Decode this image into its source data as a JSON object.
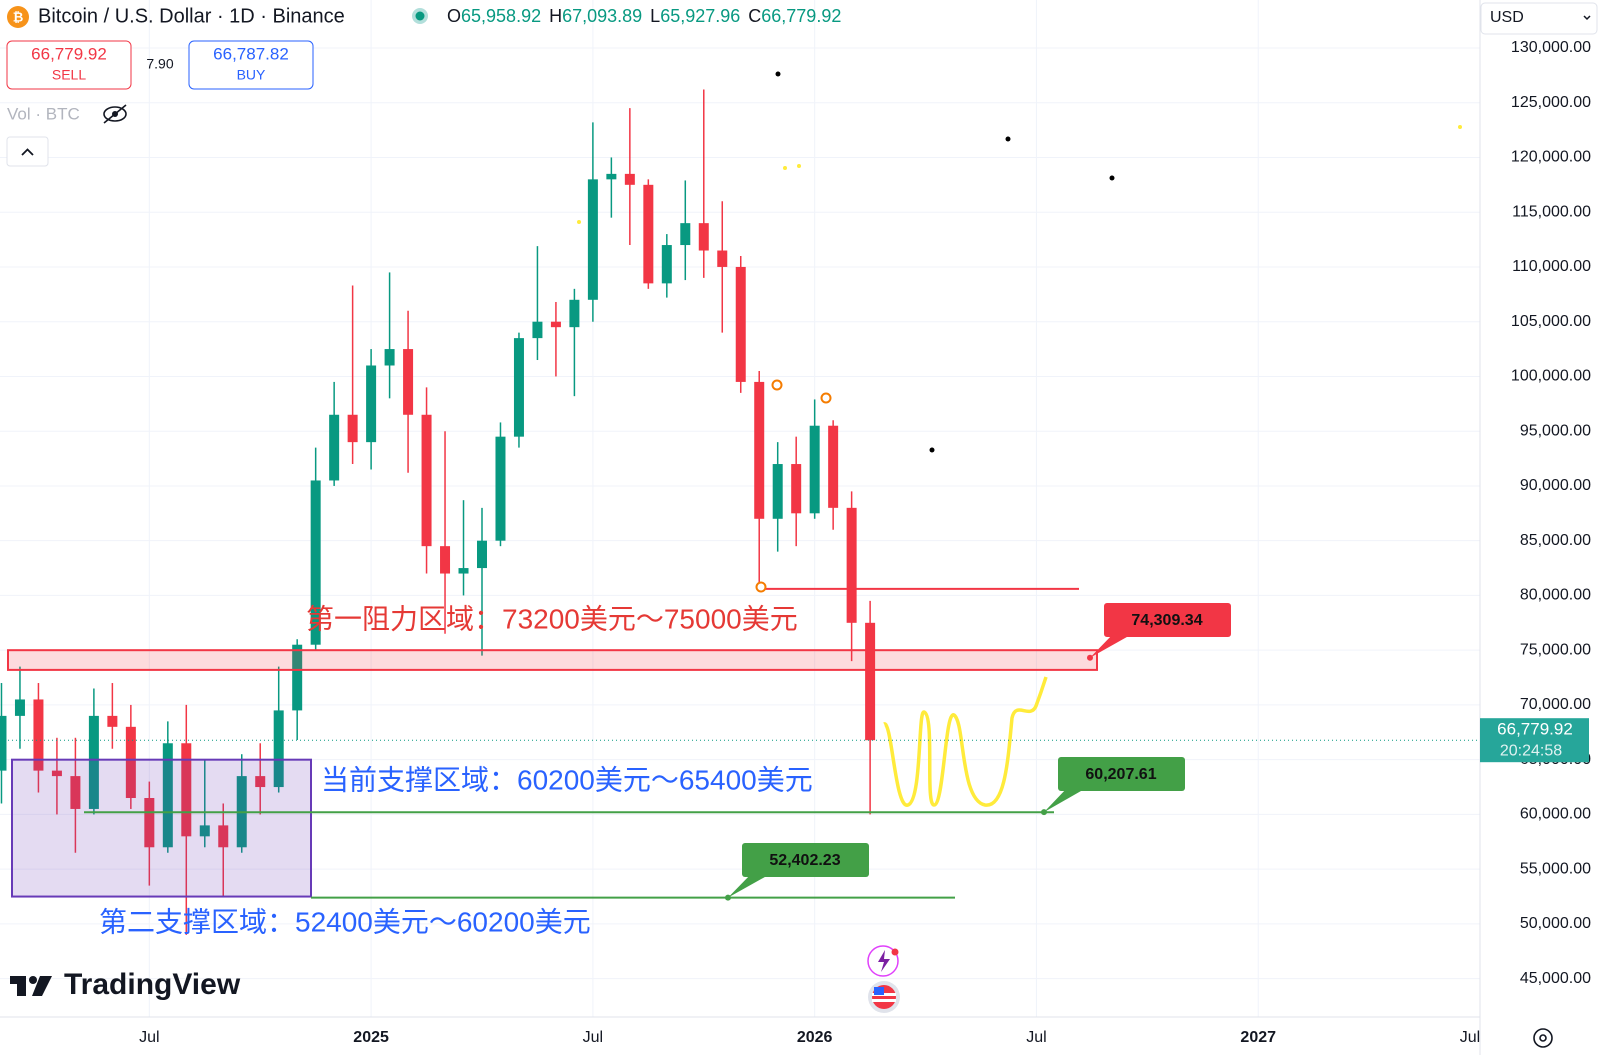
{
  "header": {
    "symbol": "Bitcoin / U.S. Dollar · 1D · Binance",
    "o_label": "O",
    "o": "65,958.92",
    "h_label": "H",
    "h": "67,093.89",
    "l_label": "L",
    "l": "65,927.96",
    "c_label": "C",
    "c": "66,779.92",
    "sell_price": "66,779.92",
    "sell": "SELL",
    "spread": "7.90",
    "buy_price": "66,787.82",
    "buy": "BUY",
    "volume": "Vol · BTC",
    "currency": "USD",
    "brand": "TradingView"
  },
  "chart_data": {
    "type": "candlestick",
    "up_color": "#089981",
    "down_color": "#f23645",
    "x": [
      2,
      2.5,
      3,
      3.5,
      4,
      4.5,
      5,
      5.5,
      6,
      6.5,
      7,
      7.5,
      8,
      8.5,
      9,
      9.5,
      10,
      10.5,
      11,
      11.5,
      12,
      12.5,
      13,
      13.5,
      14,
      14.5,
      15,
      15.5,
      16,
      16.5,
      17,
      17.5,
      18,
      18.5,
      19,
      19.5,
      20,
      20.5,
      21,
      21.5,
      22,
      22.5,
      23,
      23.5,
      24,
      24.5,
      25,
      25.5
    ],
    "open": [
      64000,
      69000,
      70500,
      64000,
      63500,
      60500,
      69000,
      68000,
      61500,
      57000,
      66500,
      58000,
      59000,
      57000,
      63500,
      62500,
      69500,
      75500,
      90500,
      96500,
      94000,
      101000,
      102500,
      96500,
      84500,
      82000,
      82500,
      85000,
      94500,
      103500,
      105000,
      104500,
      107000,
      118000,
      118500,
      117500,
      108500,
      112000,
      114000,
      111500,
      110000,
      99500,
      87000,
      92000,
      87500,
      95500,
      88000,
      77500
    ],
    "high": [
      72000,
      73500,
      72000,
      67000,
      67000,
      71500,
      72000,
      70000,
      63000,
      68500,
      70000,
      65000,
      61000,
      65500,
      66500,
      73500,
      76000,
      93500,
      99500,
      108300,
      102500,
      109500,
      106000,
      99000,
      95000,
      88700,
      88000,
      95800,
      104000,
      111900,
      106800,
      108000,
      123200,
      120000,
      124500,
      118000,
      113000,
      117900,
      126200,
      116000,
      111000,
      100500,
      94000,
      94500,
      97900,
      96000,
      89500,
      79500
    ],
    "low": [
      61000,
      66000,
      62000,
      60000,
      56500,
      60000,
      66000,
      60500,
      53500,
      56500,
      49000,
      57000,
      52500,
      56500,
      60000,
      62000,
      66800,
      75000,
      90000,
      92000,
      91500,
      98000,
      91200,
      82000,
      76500,
      80000,
      74500,
      84500,
      93500,
      101500,
      100000,
      98200,
      105000,
      114500,
      112000,
      108000,
      107200,
      108800,
      109000,
      104000,
      98500,
      80600,
      84000,
      84500,
      87000,
      86000,
      74000,
      60000
    ],
    "close": [
      69000,
      70500,
      64000,
      63500,
      60500,
      69000,
      68000,
      61500,
      57000,
      66500,
      58000,
      59000,
      57000,
      63500,
      62500,
      69500,
      75500,
      90500,
      96500,
      94000,
      101000,
      102500,
      96500,
      84500,
      82000,
      82500,
      85000,
      94500,
      103500,
      105000,
      104500,
      107000,
      118000,
      118500,
      117500,
      108500,
      112000,
      114000,
      111500,
      110000,
      99500,
      87000,
      92000,
      87500,
      95500,
      88000,
      77500,
      66779.92
    ],
    "xlim": [
      1.96,
      42
    ],
    "xticks": [
      {
        "value": 6,
        "label": "Jul"
      },
      {
        "value": 12,
        "label": "2025"
      },
      {
        "value": 18,
        "label": "Jul"
      },
      {
        "value": 24,
        "label": "2026"
      },
      {
        "value": 30,
        "label": "Jul"
      },
      {
        "value": 36,
        "label": "2027"
      },
      {
        "value": 42,
        "label": "Jul"
      }
    ],
    "ylim": [
      41500,
      131000
    ],
    "yticks": [
      {
        "value": 45000,
        "label": "45,000.00"
      },
      {
        "value": 50000,
        "label": "50,000.00"
      },
      {
        "value": 55000,
        "label": "55,000.00"
      },
      {
        "value": 60000,
        "label": "60,000.00"
      },
      {
        "value": 65000,
        "label": "65,000.00"
      },
      {
        "value": 70000,
        "label": "70,000.00"
      },
      {
        "value": 75000,
        "label": "75,000.00"
      },
      {
        "value": 80000,
        "label": "80,000.00"
      },
      {
        "value": 85000,
        "label": "85,000.00"
      },
      {
        "value": 90000,
        "label": "90,000.00"
      },
      {
        "value": 95000,
        "label": "95,000.00"
      },
      {
        "value": 100000,
        "label": "100,000.00"
      },
      {
        "value": 105000,
        "label": "105,000.00"
      },
      {
        "value": 110000,
        "label": "110,000.00"
      },
      {
        "value": 115000,
        "label": "115,000.00"
      },
      {
        "value": 120000,
        "label": "120,000.00"
      },
      {
        "value": 125000,
        "label": "125,000.00"
      },
      {
        "value": 130000,
        "label": "130,000.00"
      }
    ],
    "grid": true,
    "last_price": {
      "value": 66779.92,
      "label": "66,779.92",
      "countdown": "20:24:58"
    },
    "resistance_zone": {
      "label": "第一阻力区域：73200美元～75000美元",
      "low": 73200,
      "high": 75000
    },
    "support_box": {
      "low": 52500,
      "high": 65000
    },
    "support_1": {
      "label": "当前支撑区域：60200美元～65400美元",
      "value": 60200
    },
    "support_2": {
      "label": "第二支撑区域：52400美元～60200美元",
      "value": 52400
    },
    "resistance_line": 80600,
    "price_tags": [
      {
        "value": 74309.34,
        "label": "74,309.34",
        "color": "#f23645"
      },
      {
        "value": 60207.61,
        "label": "60,207.61",
        "color": "#43a047"
      },
      {
        "value": 52402.23,
        "label": "52,402.23",
        "color": "#43a047"
      }
    ]
  }
}
